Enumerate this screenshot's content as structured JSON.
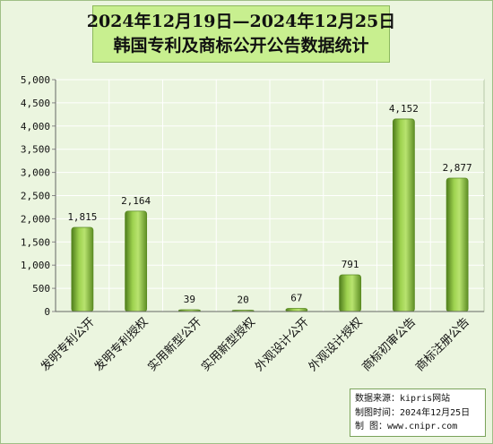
{
  "title": {
    "line1": "2024年12月19日—2024年12月25日",
    "line2": "韩国专利及商标公开公告数据统计"
  },
  "source": {
    "line1": "数据来源：kipris网站",
    "line2": "制图时间：2024年12月25日",
    "line3": "制    图：www.cnipr.com"
  },
  "colors": {
    "bar": "#8cc63f",
    "bar_dark": "#4f7d1c",
    "bar_light": "#c9ec8a",
    "plot_bg": "#ebf5df",
    "grid": "#ffffff"
  },
  "chart_data": {
    "type": "bar",
    "categories": [
      "发明专利公开",
      "发明专利授权",
      "实用新型公开",
      "实用新型授权",
      "外观设计公开",
      "外观设计授权",
      "商标初审公告",
      "商标注册公告"
    ],
    "values": [
      1815,
      2164,
      39,
      20,
      67,
      791,
      4152,
      2877
    ],
    "data_labels": [
      "1,815",
      "2,164",
      "39",
      "20",
      "67",
      "791",
      "4,152",
      "2,877"
    ],
    "y_ticks": [
      "0",
      "500",
      "1,000",
      "1,500",
      "2,000",
      "2,500",
      "3,000",
      "3,500",
      "4,000",
      "4,500",
      "5,000"
    ],
    "ylim": [
      0,
      5000
    ],
    "grid": true,
    "legend": "none"
  }
}
